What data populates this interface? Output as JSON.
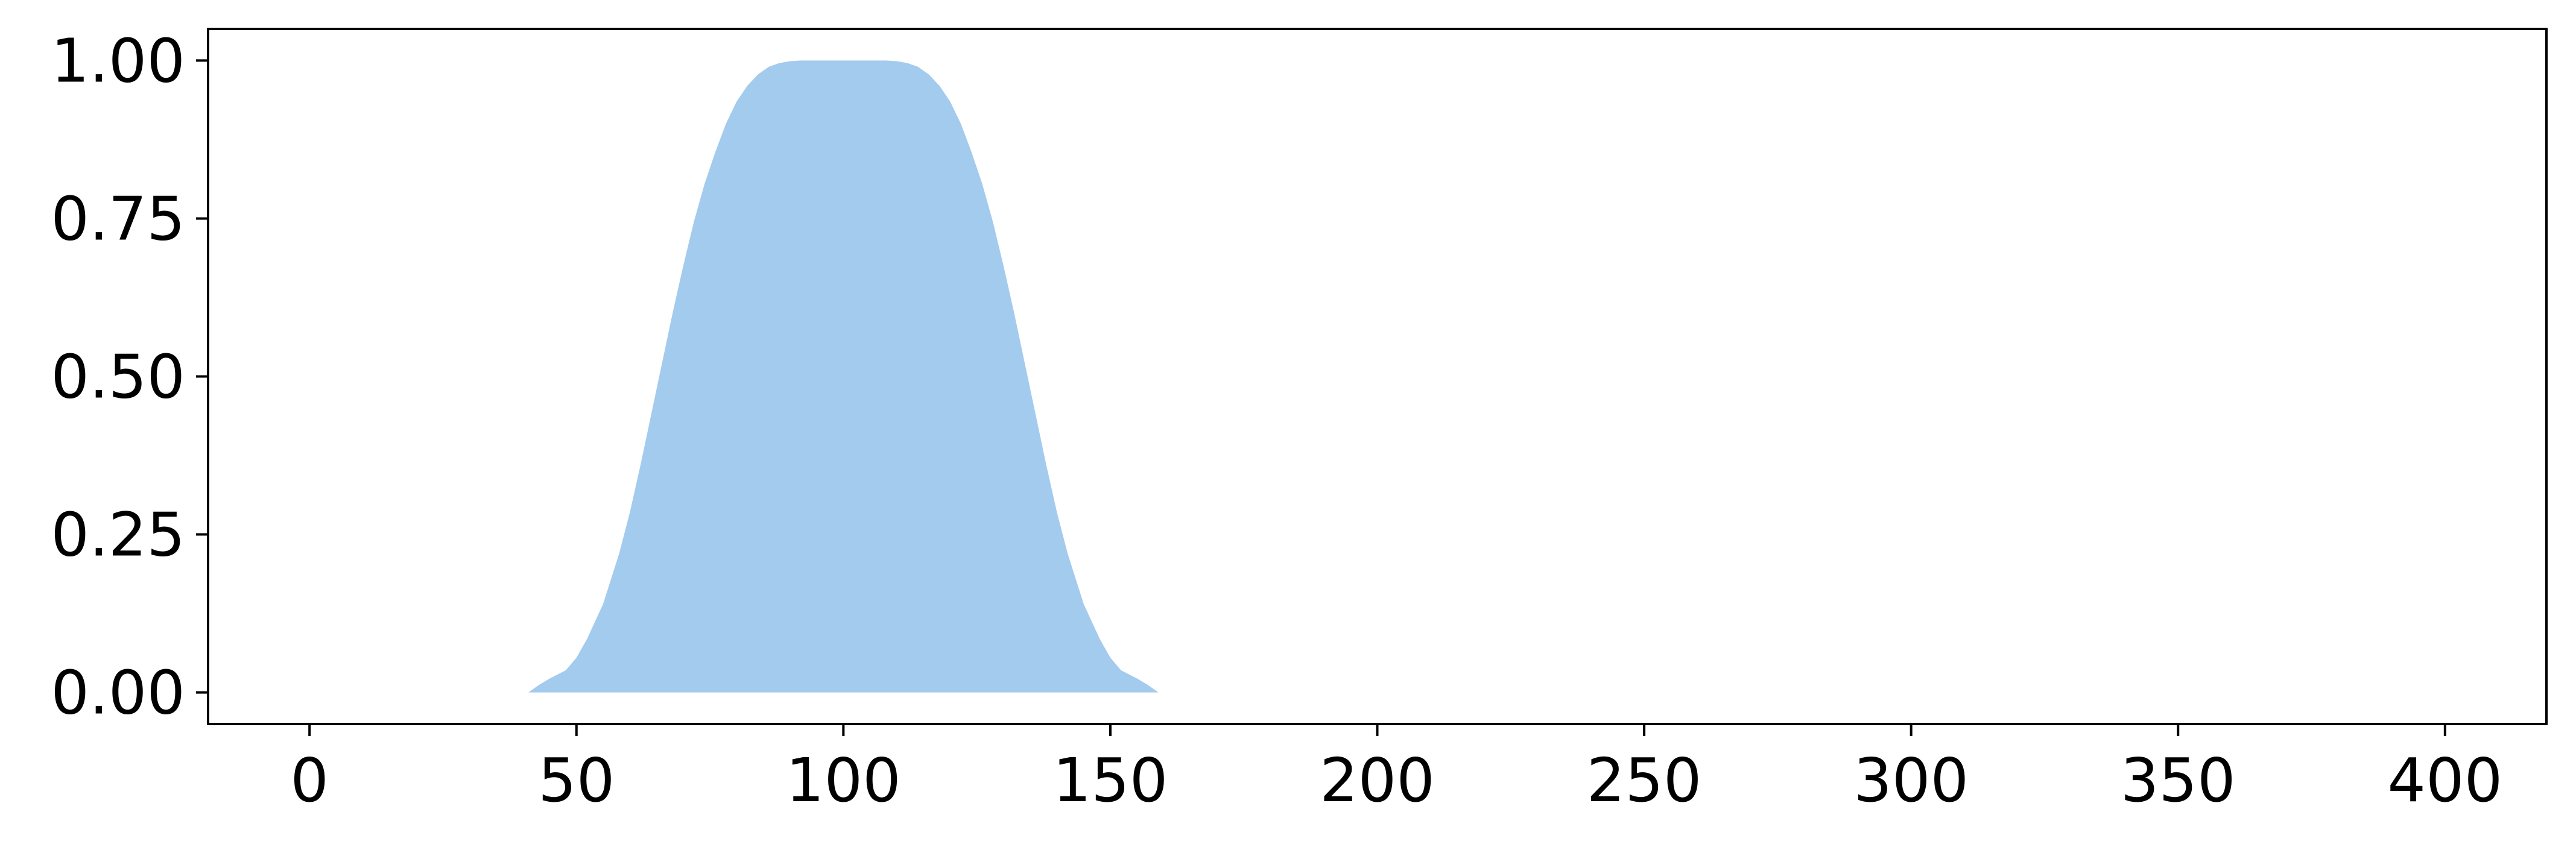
{
  "chart_data": {
    "type": "area",
    "title": "",
    "xlabel": "",
    "ylabel": "",
    "xlim": [
      -19,
      419
    ],
    "ylim": [
      -0.05,
      1.05
    ],
    "x_ticks": [
      0,
      50,
      100,
      150,
      200,
      250,
      300,
      350,
      400
    ],
    "x_tick_labels": [
      "0",
      "50",
      "100",
      "150",
      "200",
      "250",
      "300",
      "350",
      "400"
    ],
    "y_ticks": [
      0.0,
      0.25,
      0.5,
      0.75,
      1.0
    ],
    "y_tick_labels": [
      "0.00",
      "0.25",
      "0.50",
      "0.75",
      "1.00"
    ],
    "grid": false,
    "series": [
      {
        "color": "#a3cbee",
        "x": [
          41,
          43,
          45,
          48,
          50,
          52,
          55,
          58,
          60,
          62,
          64,
          66,
          68,
          70,
          72,
          74,
          76,
          78,
          80,
          82,
          84,
          86,
          88,
          90,
          92,
          94,
          96,
          98,
          100,
          102,
          104,
          106,
          108,
          110,
          112,
          114,
          116,
          118,
          120,
          122,
          124,
          126,
          128,
          130,
          132,
          134,
          136,
          138,
          140,
          142,
          145,
          148,
          150,
          152,
          155,
          157,
          159
        ],
        "y": [
          0.0,
          0.012,
          0.022,
          0.035,
          0.055,
          0.085,
          0.14,
          0.22,
          0.285,
          0.36,
          0.44,
          0.52,
          0.6,
          0.675,
          0.745,
          0.805,
          0.855,
          0.9,
          0.935,
          0.96,
          0.978,
          0.99,
          0.996,
          0.999,
          1.0,
          1.0,
          1.0,
          1.0,
          1.0,
          1.0,
          1.0,
          1.0,
          1.0,
          0.999,
          0.996,
          0.99,
          0.978,
          0.96,
          0.935,
          0.9,
          0.855,
          0.805,
          0.745,
          0.675,
          0.6,
          0.52,
          0.44,
          0.36,
          0.285,
          0.22,
          0.14,
          0.085,
          0.055,
          0.035,
          0.022,
          0.012,
          0.0
        ]
      }
    ]
  }
}
